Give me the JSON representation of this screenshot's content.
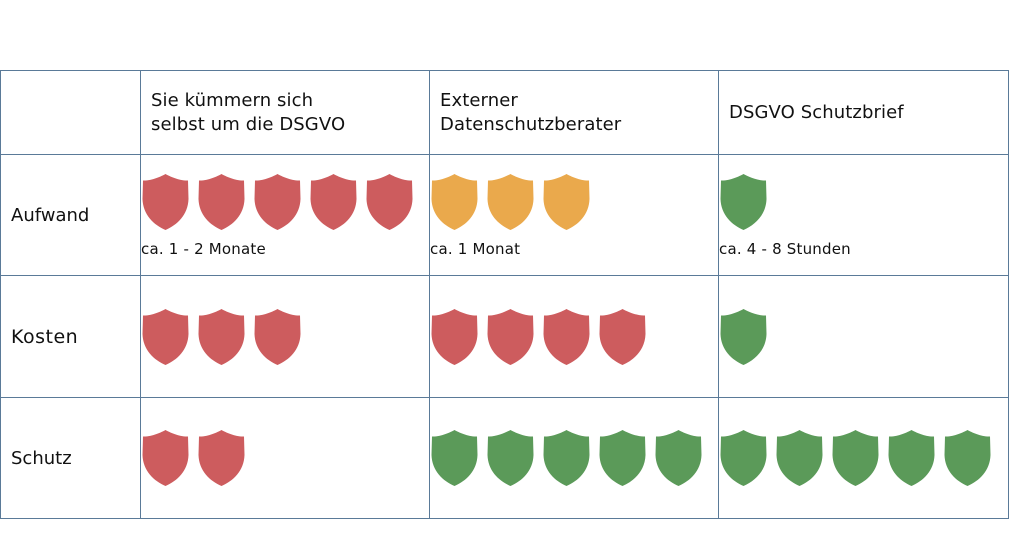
{
  "colors": {
    "bad": "#cd5c5e",
    "medium": "#eaa94c",
    "good": "#5b9a59",
    "border": "#5a7a98"
  },
  "columns": [
    {
      "line1": "Sie kümmern sich",
      "line2": "selbst um die DSGVO"
    },
    {
      "line1": "Externer",
      "line2": "Datenschutzberater"
    },
    {
      "line1": "DSGVO Schutzbrief",
      "line2": ""
    }
  ],
  "rows": [
    {
      "label": "Aufwand",
      "cells": [
        {
          "shields": 5,
          "color": "bad",
          "note": "ca. 1 - 2 Monate"
        },
        {
          "shields": 3,
          "color": "medium",
          "note": "ca. 1 Monat"
        },
        {
          "shields": 1,
          "color": "good",
          "note": "ca. 4 - 8 Stunden"
        }
      ]
    },
    {
      "label": "Kosten",
      "cells": [
        {
          "shields": 3,
          "color": "bad",
          "note": ""
        },
        {
          "shields": 4,
          "color": "bad",
          "note": ""
        },
        {
          "shields": 1,
          "color": "good",
          "note": ""
        }
      ]
    },
    {
      "label": "Schutz",
      "cells": [
        {
          "shields": 2,
          "color": "bad",
          "note": ""
        },
        {
          "shields": 5,
          "color": "good",
          "note": ""
        },
        {
          "shields": 5,
          "color": "good",
          "note": ""
        }
      ]
    }
  ]
}
